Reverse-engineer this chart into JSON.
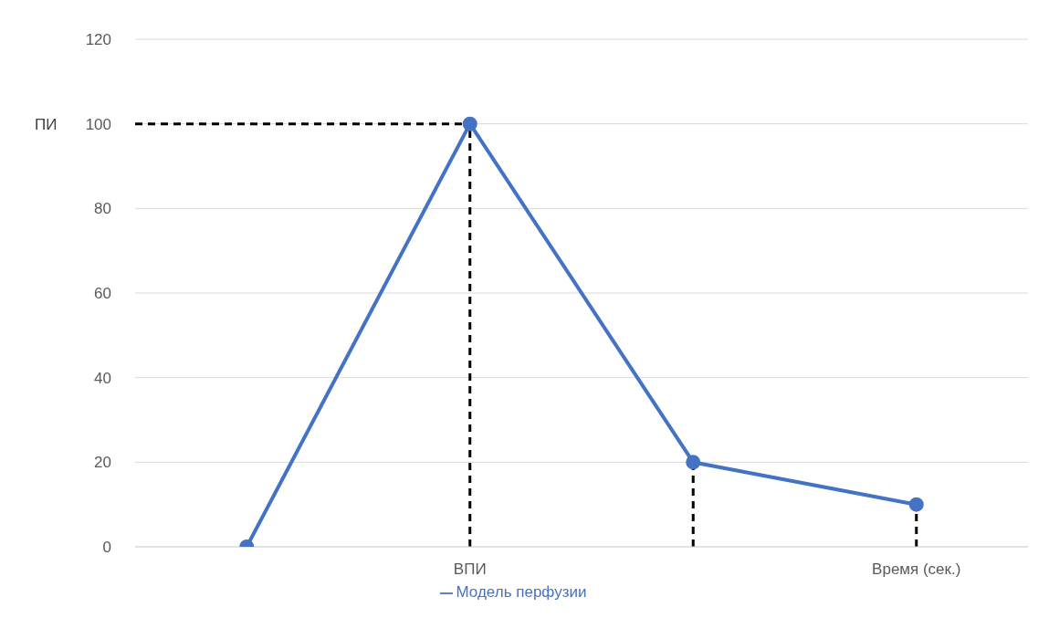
{
  "chart_data": {
    "type": "line",
    "ylabel": "ПИ",
    "categories": [
      null,
      "ВПИ",
      null,
      "Время (сек.)"
    ],
    "series": [
      {
        "name": "Модель перфузии",
        "color": "#4472c4",
        "values": [
          0,
          100,
          20,
          10
        ]
      }
    ],
    "ylim": [
      0,
      120
    ],
    "yticks": [
      0,
      20,
      40,
      60,
      80,
      100,
      120
    ],
    "grid": "y",
    "legend": "bottom",
    "marker": "circle",
    "line_style": "solid",
    "ref_lines": [
      {
        "axis": "y",
        "value": 100,
        "color": "#000000",
        "line_style": "dashed"
      },
      {
        "axis": "x",
        "value": "ВПИ",
        "color": "#000000",
        "line_style": "dashed"
      },
      {
        "axis": "x",
        "value": "Время (сек.)",
        "color": "#000000",
        "line_style": "dashed"
      }
    ]
  }
}
